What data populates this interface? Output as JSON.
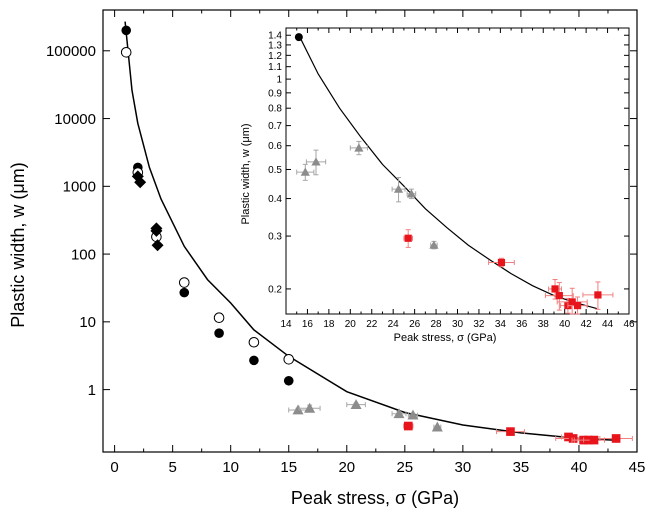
{
  "colors": {
    "black": "#000000",
    "open": "#ffffff",
    "gray": "#8c8c8c",
    "red": "#e8141c",
    "red_err": "#f08080",
    "gray_err": "#a6a6a6"
  },
  "chart_data": [
    {
      "type": "scatter",
      "panel": "main",
      "title": "",
      "xlabel": "Peak stress, σ (GPa)",
      "ylabel": "Plastic width, w (μm)",
      "xlim": [
        -1,
        45
      ],
      "ylim": [
        0.12,
        400000
      ],
      "yscale": "log",
      "xticks": [
        "0",
        "5",
        "10",
        "15",
        "20",
        "25",
        "30",
        "35",
        "40",
        "45"
      ],
      "yticks": [
        "1",
        "10",
        "100",
        "1000",
        "10000",
        "100000"
      ],
      "series": [
        {
          "marker": "filled-circle",
          "x": [
            1,
            2,
            6,
            9,
            12,
            15
          ],
          "y": [
            200000,
            1900,
            27,
            6.8,
            2.7,
            1.35
          ]
        },
        {
          "marker": "open-circle",
          "x": [
            1,
            2,
            3.6,
            6,
            9,
            12,
            15
          ],
          "y": [
            95000,
            1600,
            180,
            38,
            11.5,
            5,
            2.8
          ]
        },
        {
          "marker": "filled-diamond",
          "x": [
            2.2,
            2.0,
            3.6,
            3.6,
            3.7
          ],
          "y": [
            1150,
            1400,
            240,
            220,
            135
          ]
        },
        {
          "marker": "gray-triangle",
          "x": [
            15.8,
            16.8,
            20.8,
            24.5,
            25.7,
            27.8
          ],
          "y": [
            0.5,
            0.53,
            0.6,
            0.44,
            0.42,
            0.28
          ],
          "xerr": [
            0.8,
            0.9,
            0.8,
            0.6,
            0.4,
            0.3
          ],
          "yerr": [
            0.03,
            0.06,
            0.03,
            0.04,
            0.02,
            0.01
          ]
        },
        {
          "marker": "red-square",
          "x": [
            25.3,
            34.1,
            39.1,
            39.5,
            40.4,
            40.8,
            41.3,
            43.2
          ],
          "y": [
            0.29,
            0.24,
            0.2,
            0.19,
            0.18,
            0.18,
            0.18,
            0.19
          ],
          "xerr": [
            0.4,
            1.2,
            0.6,
            1.5,
            0.8,
            1.4,
            0.9,
            1.4
          ],
          "yerr": [
            0.02,
            0.01,
            0.015,
            0.02,
            0.01,
            0.02,
            0.015,
            0.02
          ]
        }
      ],
      "fit_curve": {
        "x": [
          0.9,
          1.5,
          2,
          3,
          4,
          6,
          8,
          10,
          12,
          15,
          20,
          25,
          30,
          35,
          40,
          43
        ],
        "y": [
          270000,
          26000,
          8500,
          1900,
          650,
          130,
          42,
          19,
          7.6,
          3.1,
          0.93,
          0.46,
          0.3,
          0.23,
          0.19,
          0.18
        ]
      }
    },
    {
      "type": "scatter",
      "panel": "inset",
      "title": "",
      "xlabel": "Peak stress, σ (GPa)",
      "ylabel": "Plastic width, w (μm)",
      "xlim": [
        14,
        46
      ],
      "ylim": [
        0.165,
        1.48
      ],
      "yscale": "log",
      "xticks": [
        "14",
        "16",
        "18",
        "20",
        "22",
        "24",
        "26",
        "28",
        "30",
        "32",
        "34",
        "36",
        "38",
        "40",
        "42",
        "44",
        "46"
      ],
      "yticks": [
        "0.2",
        "0.3",
        "0.4",
        "0.5",
        "0.6",
        "0.7",
        "0.8",
        "0.9",
        "1",
        "1.1",
        "1.2",
        "1.3",
        "1.4"
      ],
      "series": [
        {
          "marker": "filled-circle",
          "x": [
            15.2
          ],
          "y": [
            1.38
          ]
        },
        {
          "marker": "gray-triangle",
          "x": [
            15.8,
            16.8,
            20.8,
            24.5,
            25.7,
            27.8
          ],
          "y": [
            0.49,
            0.53,
            0.59,
            0.43,
            0.415,
            0.28
          ],
          "xerr": [
            0.8,
            0.9,
            0.8,
            0.6,
            0.4,
            0.3
          ],
          "yerr": [
            0.03,
            0.05,
            0.03,
            0.04,
            0.015,
            0.008
          ]
        },
        {
          "marker": "red-square",
          "x": [
            25.4,
            34.1,
            39.1,
            39.5,
            40.3,
            40.7,
            41.2,
            43.1
          ],
          "y": [
            0.295,
            0.245,
            0.2,
            0.19,
            0.176,
            0.181,
            0.176,
            0.191
          ],
          "xerr": [
            0.4,
            1.2,
            0.6,
            1.3,
            0.7,
            1.4,
            0.9,
            1.4
          ],
          "yerr": [
            0.02,
            0.008,
            0.015,
            0.02,
            0.01,
            0.02,
            0.012,
            0.02
          ]
        }
      ],
      "fit_curve": {
        "x": [
          15.2,
          17,
          19,
          21,
          23,
          25,
          27,
          29,
          31,
          33,
          35,
          37,
          39,
          41,
          43
        ],
        "y": [
          1.4,
          1.04,
          0.8,
          0.64,
          0.52,
          0.44,
          0.37,
          0.32,
          0.28,
          0.25,
          0.225,
          0.205,
          0.19,
          0.18,
          0.172
        ]
      }
    }
  ]
}
